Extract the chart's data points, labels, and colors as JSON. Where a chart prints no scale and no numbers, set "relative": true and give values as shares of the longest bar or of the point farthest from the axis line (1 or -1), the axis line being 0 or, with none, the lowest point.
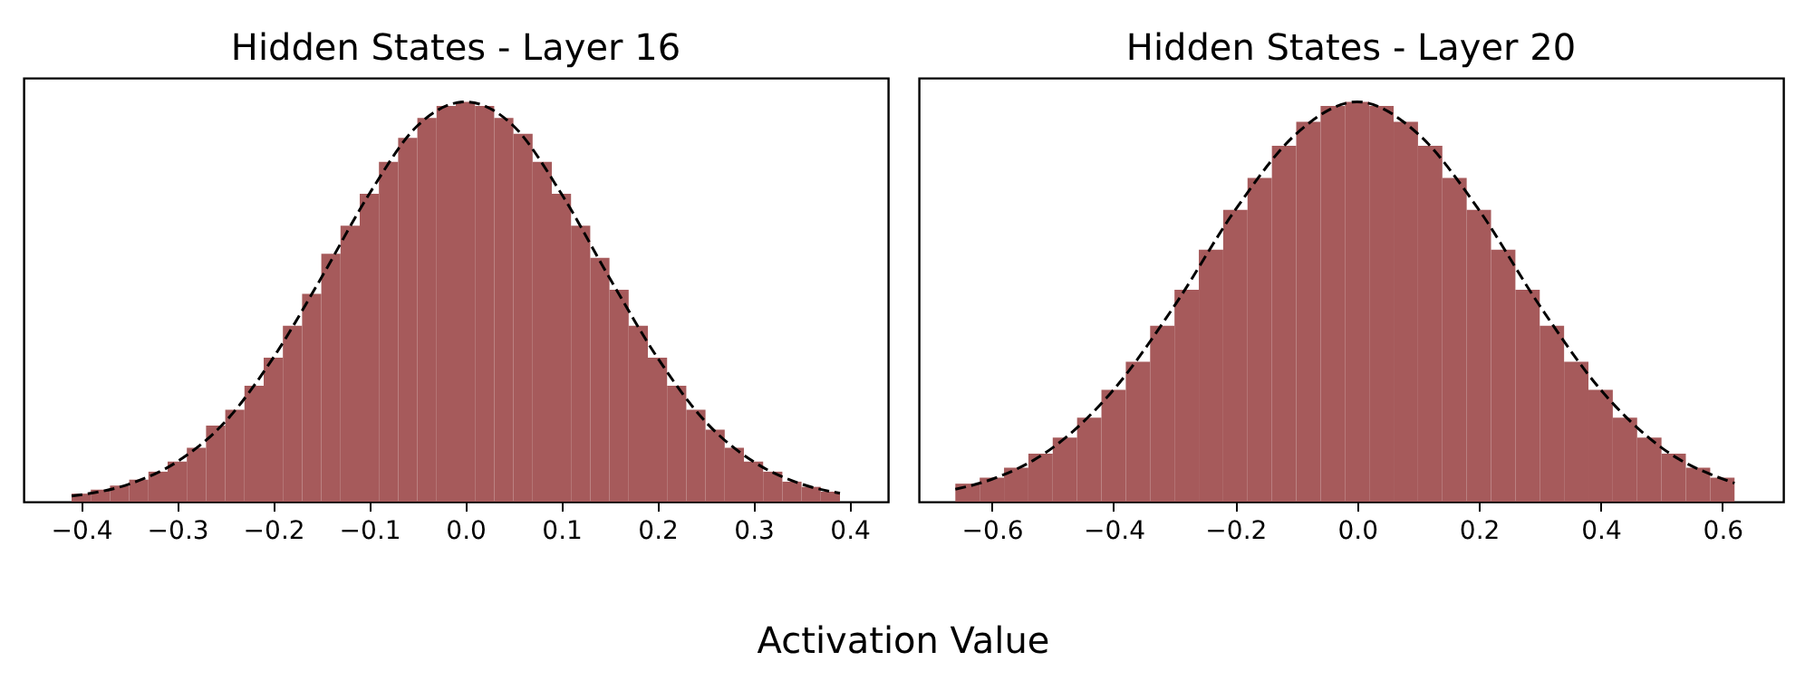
{
  "chart_data": [
    {
      "type": "histogram",
      "title": "Hidden States - Layer 16",
      "xlabel": "Activation Value",
      "relative": true,
      "tick_labels": "x",
      "grid": false,
      "xlim": [
        -0.46,
        0.44
      ],
      "xticks": [
        -0.4,
        -0.3,
        -0.2,
        -0.1,
        {
          "value": 0,
          "label": "0.0"
        },
        0.1,
        0.2,
        0.3,
        0.4
      ],
      "bins": [
        -0.41,
        -0.39,
        -0.37,
        -0.35,
        -0.33,
        -0.31,
        -0.29,
        -0.27,
        -0.25,
        -0.23,
        -0.21,
        -0.19,
        -0.17,
        -0.15,
        -0.13,
        -0.11,
        -0.09,
        -0.07,
        -0.05,
        -0.03,
        -0.01,
        0.01,
        0.03,
        0.05,
        0.07,
        0.09,
        0.11,
        0.13,
        0.15,
        0.17,
        0.19,
        0.21,
        0.23,
        0.25,
        0.27,
        0.29,
        0.31,
        0.33,
        0.35,
        0.37,
        0.39
      ],
      "series": [
        {
          "color": "#a65a5b",
          "values": [
            0.02,
            0.03,
            0.04,
            0.055,
            0.075,
            0.1,
            0.135,
            0.19,
            0.23,
            0.29,
            0.36,
            0.44,
            0.52,
            0.62,
            0.69,
            0.77,
            0.85,
            0.91,
            0.96,
            0.99,
            1,
            0.99,
            0.96,
            0.92,
            0.85,
            0.77,
            0.69,
            0.61,
            0.53,
            0.44,
            0.36,
            0.29,
            0.23,
            0.18,
            0.135,
            0.1,
            0.075,
            0.05,
            0.037,
            0.025
          ]
        },
        {
          "type": "line",
          "color": "#000000",
          "line_style": "dashed",
          "x": [
            -0.41,
            -0.35,
            -0.3,
            -0.25,
            -0.2,
            -0.15,
            -0.1,
            -0.05,
            0,
            0.05,
            0.1,
            0.15,
            0.2,
            0.25,
            0.3,
            0.35,
            0.39
          ],
          "values": [
            0.014,
            0.044,
            0.1,
            0.2,
            0.36,
            0.56,
            0.77,
            0.94,
            1,
            0.94,
            0.77,
            0.56,
            0.36,
            0.2,
            0.1,
            0.044,
            0.021
          ]
        }
      ]
    },
    {
      "type": "histogram",
      "title": "Hidden States - Layer 20",
      "relative": true,
      "tick_labels": "x",
      "grid": false,
      "xlim": [
        -0.72,
        0.7
      ],
      "xticks": [
        -0.6,
        -0.4,
        -0.2,
        {
          "value": 0,
          "label": "0.0"
        },
        0.2,
        0.4,
        0.6
      ],
      "bins": [
        -0.66,
        -0.62,
        -0.58,
        -0.54,
        -0.5,
        -0.46,
        -0.42,
        -0.38,
        -0.34,
        -0.3,
        -0.26,
        -0.22,
        -0.18,
        -0.14,
        -0.1,
        -0.06,
        -0.02,
        0.02,
        0.06,
        0.1,
        0.14,
        0.18,
        0.22,
        0.26,
        0.3,
        0.34,
        0.38,
        0.42,
        0.46,
        0.5,
        0.54,
        0.58,
        0.62
      ],
      "series": [
        {
          "color": "#a65a5b",
          "values": [
            0.045,
            0.06,
            0.085,
            0.12,
            0.16,
            0.21,
            0.28,
            0.35,
            0.44,
            0.53,
            0.63,
            0.73,
            0.81,
            0.89,
            0.95,
            0.99,
            1,
            0.99,
            0.95,
            0.89,
            0.81,
            0.73,
            0.63,
            0.53,
            0.44,
            0.35,
            0.28,
            0.21,
            0.16,
            0.12,
            0.085,
            0.06
          ]
        },
        {
          "type": "line",
          "color": "#000000",
          "line_style": "dashed",
          "x": [
            -0.66,
            -0.6,
            -0.5,
            -0.4,
            -0.3,
            -0.2,
            -0.1,
            0,
            0.1,
            0.2,
            0.3,
            0.4,
            0.5,
            0.62
          ],
          "values": [
            0.031,
            0.056,
            0.135,
            0.28,
            0.49,
            0.73,
            0.92,
            1,
            0.92,
            0.73,
            0.49,
            0.28,
            0.135,
            0.046
          ]
        }
      ]
    }
  ]
}
